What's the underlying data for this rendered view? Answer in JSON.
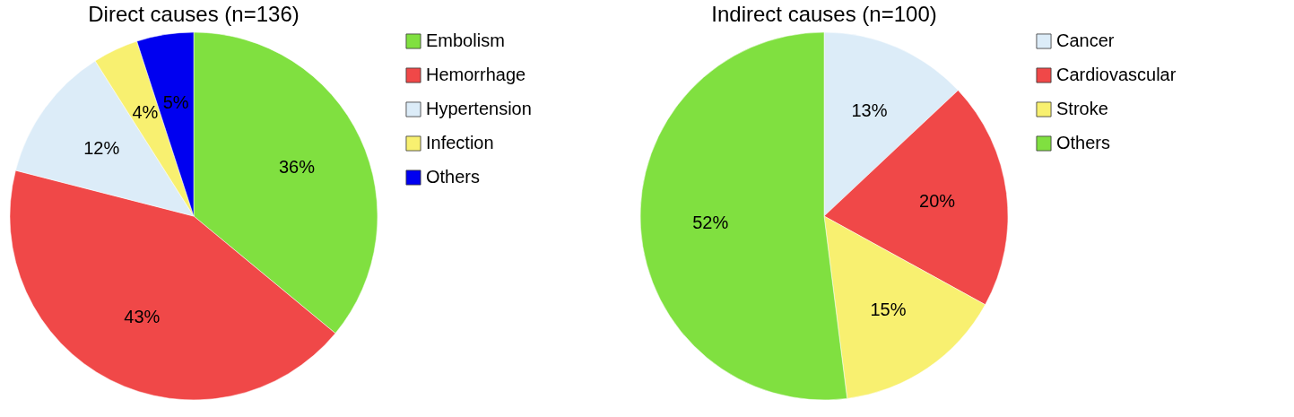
{
  "chart_data": [
    {
      "type": "pie",
      "title": "Direct causes (n=136)",
      "categories": [
        "Embolism",
        "Hemorrhage",
        "Hypertension",
        "Infection",
        "Others"
      ],
      "values": [
        36,
        43,
        12,
        4,
        5
      ],
      "colors": [
        "#80e040",
        "#f04848",
        "#dcecf8",
        "#f8f070",
        "#0000f0"
      ],
      "value_labels": [
        "36%",
        "43%",
        "12%",
        "4%",
        "5%"
      ],
      "legend": "right"
    },
    {
      "type": "pie",
      "title": "Indirect causes (n=100)",
      "categories": [
        "Cancer",
        "Cardiovascular",
        "Stroke",
        "Others"
      ],
      "values": [
        13,
        20,
        15,
        52
      ],
      "colors": [
        "#dcecf8",
        "#f04848",
        "#f8f070",
        "#80e040"
      ],
      "value_labels": [
        "13%",
        "20%",
        "15%",
        "52%"
      ],
      "legend": "right"
    }
  ]
}
